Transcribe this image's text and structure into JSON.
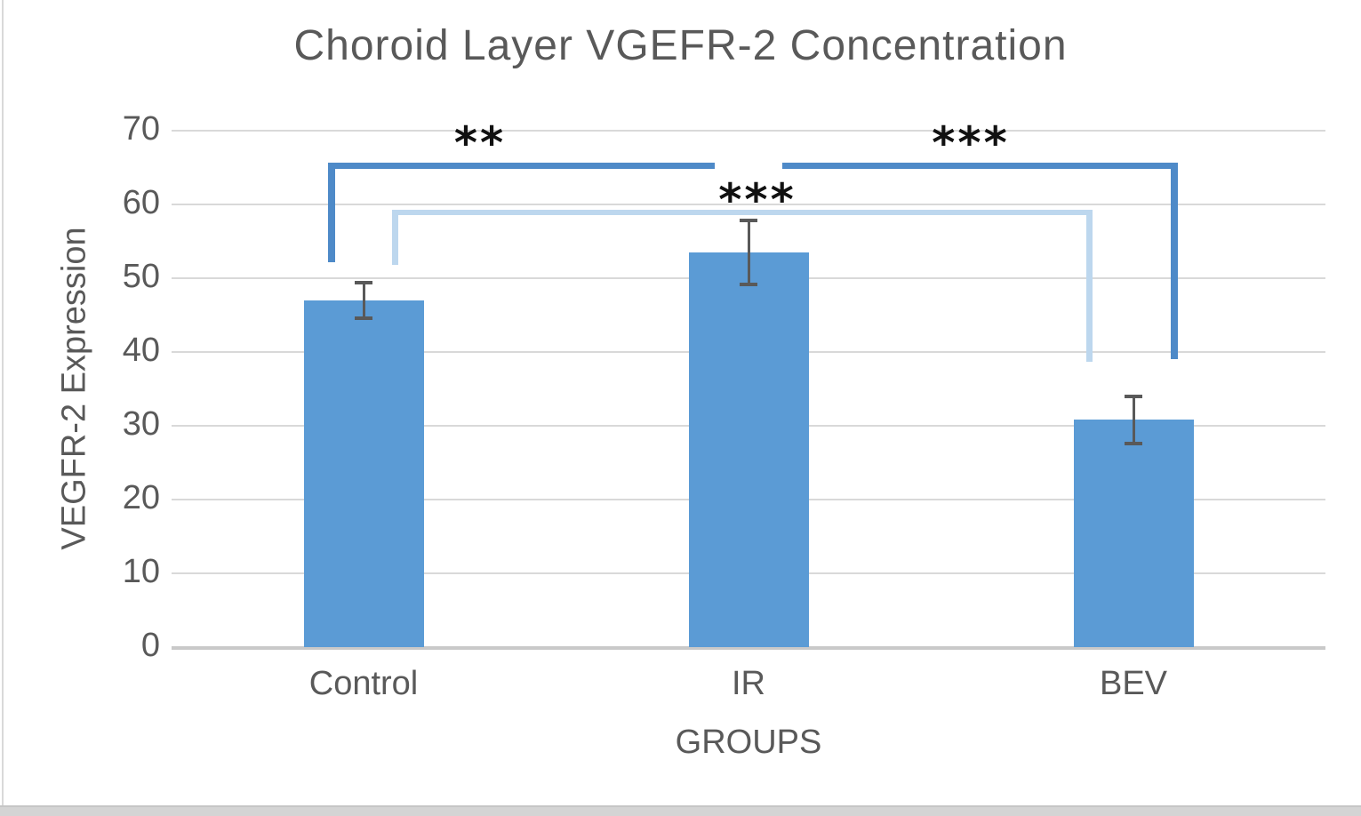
{
  "title": "Choroid Layer VGEFR-2 Concentration",
  "colors": {
    "bar": "#5b9bd5",
    "bracket_dark": "#4e8ac8",
    "bracket_light": "#bdd7ee",
    "gridline": "#d9d9d9",
    "axis_line": "#c9c9c9",
    "error_bar": "#595959",
    "text": "#595959",
    "significance_text": "#111111"
  },
  "chart_data": {
    "type": "bar",
    "title": "Choroid Layer VGEFR-2 Concentration",
    "xlabel": "GROUPS",
    "ylabel": "VEGFR-2 Expression",
    "categories": [
      "Control",
      "IR",
      "BEV"
    ],
    "values": [
      47,
      53.5,
      30.8
    ],
    "error_bars": [
      2.4,
      4.3,
      3.2
    ],
    "ylim": [
      0,
      70
    ],
    "ytick_interval": 10,
    "ytick_labels": [
      "0",
      "10",
      "20",
      "30",
      "40",
      "50",
      "60",
      "70"
    ],
    "grid": true,
    "legend": false,
    "bar_color": "#5b9bd5",
    "significance": [
      {
        "pair": "Control-IR",
        "label": "**",
        "bracket_color": "#4e8ac8"
      },
      {
        "pair": "IR-BEV",
        "label": "***",
        "bracket_color": "#4e8ac8"
      },
      {
        "pair": "Control-BEV",
        "label": "***",
        "bracket_color": "#bdd7ee"
      }
    ]
  }
}
